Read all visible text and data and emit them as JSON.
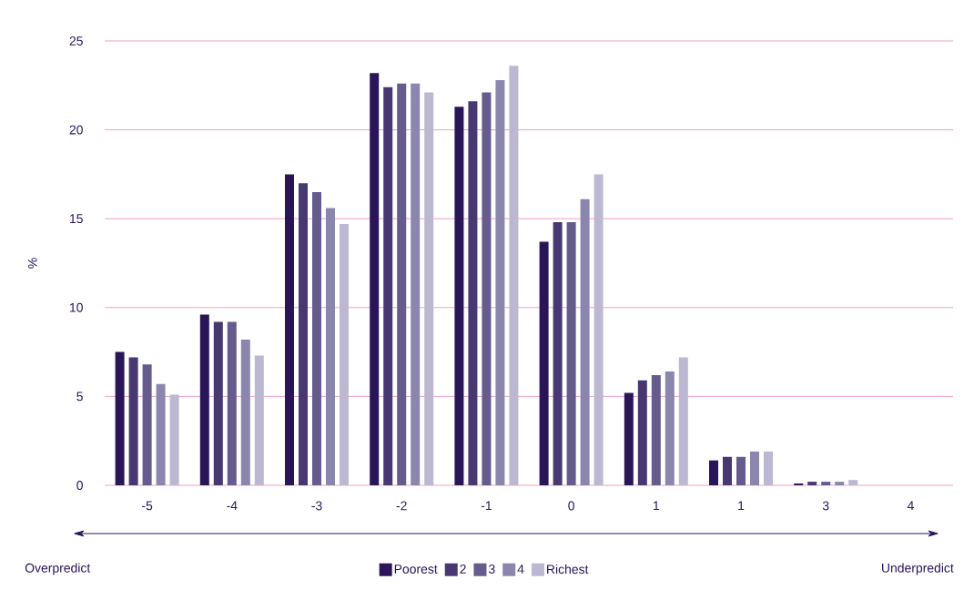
{
  "chart_data": {
    "type": "bar",
    "ylabel": "%",
    "categories": [
      "-5",
      "-4",
      "-3",
      "-2",
      "-1",
      "0",
      "1",
      "1",
      "3",
      "4"
    ],
    "series": [
      {
        "name": "Poorest",
        "color": "#2a1558",
        "values": [
          7.5,
          9.6,
          17.5,
          23.2,
          21.3,
          13.7,
          5.2,
          1.4,
          0.1,
          0
        ]
      },
      {
        "name": "2",
        "color": "#473872",
        "values": [
          7.2,
          9.2,
          17.0,
          22.4,
          21.6,
          14.8,
          5.9,
          1.6,
          0.2,
          0
        ]
      },
      {
        "name": "3",
        "color": "#655b8d",
        "values": [
          6.8,
          9.2,
          16.5,
          22.6,
          22.1,
          14.8,
          6.2,
          1.6,
          0.2,
          0
        ]
      },
      {
        "name": "4",
        "color": "#8b86ad",
        "values": [
          5.7,
          8.2,
          15.6,
          22.6,
          22.8,
          16.1,
          6.4,
          1.9,
          0.2,
          0
        ]
      },
      {
        "name": "Richest",
        "color": "#bcb8d2",
        "values": [
          5.1,
          7.3,
          14.7,
          22.1,
          23.6,
          17.5,
          7.2,
          1.9,
          0.3,
          0
        ]
      }
    ],
    "ylim": [
      0,
      25
    ],
    "yticks": [
      0,
      5,
      10,
      15,
      20,
      25
    ],
    "grid": "y",
    "legend": "bottom",
    "annotations": [
      "Overpredict",
      "Underpredict"
    ]
  }
}
